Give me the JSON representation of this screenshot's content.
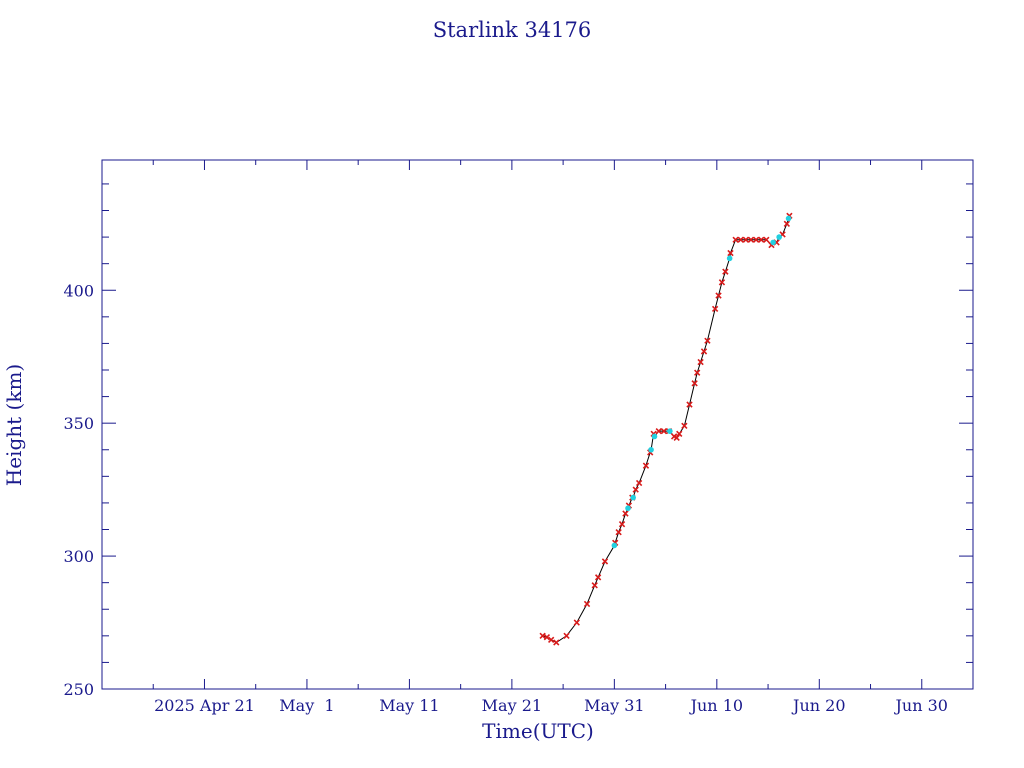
{
  "chart_data": {
    "type": "scatter",
    "title": "Starlink 34176",
    "xlabel": "Time(UTC)",
    "ylabel": "Height (km)",
    "x_ticks": [
      "2025 Apr 21",
      "May  1",
      "May 11",
      "May 21",
      "May 31",
      "Jun 10",
      "Jun 20",
      "Jun 30"
    ],
    "y_ticks": [
      250,
      300,
      350,
      400
    ],
    "xlim": [
      "2025-04-11",
      "2025-07-05"
    ],
    "ylim": [
      250,
      449
    ],
    "grid": false,
    "legend": "none",
    "colors": {
      "axis": "#1a1a8c",
      "line": "#000000",
      "primary_markers": "#d81b1b",
      "secondary_markers": "#22d0e0"
    },
    "series": [
      {
        "marker": "x",
        "color": "#d81b1b",
        "points": [
          [
            "2025-05-24T00:00",
            270
          ],
          [
            "2025-05-24T10:00",
            269.5
          ],
          [
            "2025-05-24T20:00",
            268.5
          ],
          [
            "2025-05-25T08:00",
            267.5
          ],
          [
            "2025-05-26T08:00",
            270
          ],
          [
            "2025-05-27T08:00",
            275
          ],
          [
            "2025-05-28T08:00",
            282
          ],
          [
            "2025-05-29T02:00",
            289
          ],
          [
            "2025-05-29T10:00",
            292
          ],
          [
            "2025-05-30T02:00",
            298
          ],
          [
            "2025-05-31T02:00",
            305
          ],
          [
            "2025-05-31T10:00",
            309
          ],
          [
            "2025-05-31T18:00",
            312
          ],
          [
            "2025-06-01T02:00",
            316
          ],
          [
            "2025-06-01T10:00",
            319
          ],
          [
            "2025-06-01T18:00",
            322
          ],
          [
            "2025-06-02T02:00",
            325
          ],
          [
            "2025-06-02T10:00",
            327.5
          ],
          [
            "2025-06-03T02:00",
            334
          ],
          [
            "2025-06-03T12:00",
            339
          ],
          [
            "2025-06-03T20:00",
            346
          ],
          [
            "2025-06-04T08:00",
            347
          ],
          [
            "2025-06-04T20:00",
            347
          ],
          [
            "2025-06-05T08:00",
            347
          ],
          [
            "2025-06-05T20:00",
            345
          ],
          [
            "2025-06-06T02:00",
            344.5
          ],
          [
            "2025-06-06T08:00",
            346
          ],
          [
            "2025-06-06T20:00",
            349
          ],
          [
            "2025-06-07T08:00",
            357
          ],
          [
            "2025-06-07T20:00",
            365
          ],
          [
            "2025-06-08T02:00",
            369
          ],
          [
            "2025-06-08T10:00",
            373
          ],
          [
            "2025-06-08T18:00",
            377
          ],
          [
            "2025-06-09T02:00",
            381
          ],
          [
            "2025-06-09T20:00",
            393
          ],
          [
            "2025-06-10T04:00",
            398
          ],
          [
            "2025-06-10T12:00",
            403
          ],
          [
            "2025-06-10T20:00",
            407
          ],
          [
            "2025-06-11T08:00",
            414
          ],
          [
            "2025-06-11T20:00",
            419
          ],
          [
            "2025-06-12T08:00",
            419
          ],
          [
            "2025-06-12T20:00",
            419
          ],
          [
            "2025-06-13T08:00",
            419
          ],
          [
            "2025-06-13T20:00",
            419
          ],
          [
            "2025-06-14T08:00",
            419
          ],
          [
            "2025-06-14T20:00",
            419
          ],
          [
            "2025-06-15T08:00",
            417
          ],
          [
            "2025-06-15T20:00",
            418
          ],
          [
            "2025-06-16T10:00",
            421
          ],
          [
            "2025-06-16T20:00",
            425
          ],
          [
            "2025-06-17T02:00",
            428
          ]
        ]
      },
      {
        "marker": "dot",
        "color": "#22d0e0",
        "points": [
          [
            "2025-05-31T00:00",
            304
          ],
          [
            "2025-06-01T08:00",
            318
          ],
          [
            "2025-06-01T20:00",
            322
          ],
          [
            "2025-06-03T14:00",
            340
          ],
          [
            "2025-06-03T22:00",
            345
          ],
          [
            "2025-06-05T10:00",
            347
          ],
          [
            "2025-06-11T06:00",
            412
          ],
          [
            "2025-06-15T12:00",
            418
          ],
          [
            "2025-06-16T02:00",
            420
          ],
          [
            "2025-06-17T00:00",
            427
          ]
        ]
      }
    ]
  }
}
